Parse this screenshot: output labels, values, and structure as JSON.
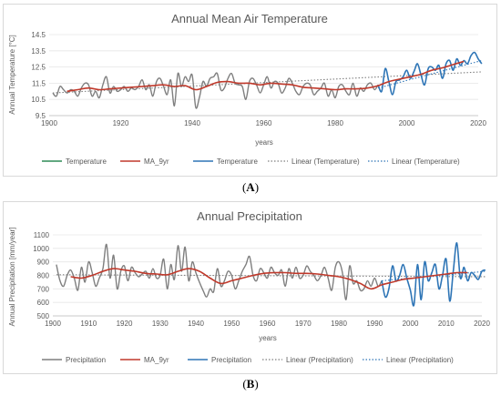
{
  "figure": {
    "caption_a": "A",
    "caption_b": "B"
  },
  "chart_data": [
    {
      "type": "line",
      "title": "Annual Mean Air Temperature",
      "xlabel": "years",
      "ylabel": "Annual Temperature [°C]",
      "xlim": [
        1900,
        2020
      ],
      "ylim": [
        9.5,
        14.5
      ],
      "xticks": [
        "1900",
        "1920",
        "1940",
        "1960",
        "1980",
        "2000",
        "2020"
      ],
      "yticks": [
        "9.5",
        "10.5",
        "11.5",
        "12.5",
        "13.5",
        "14.5"
      ],
      "colors": {
        "temperature_hist": "#2e8b57",
        "ma": "#c0392b",
        "temperature_recent": "#2e75b6",
        "trend_hist": "#7f7f7f",
        "trend_recent": "#2e75b6"
      },
      "legend": [
        "Temperature",
        "MA_9yr",
        "Temperature",
        "Linear (Temperature)",
        "Linear (Temperature)"
      ],
      "legend_position": "bottom",
      "series": [
        {
          "name": "Temperature",
          "x": [
            1901,
            1902,
            1903,
            1904,
            1905,
            1906,
            1907,
            1908,
            1909,
            1910,
            1911,
            1912,
            1913,
            1914,
            1915,
            1916,
            1917,
            1918,
            1919,
            1920,
            1921,
            1922,
            1923,
            1924,
            1925,
            1926,
            1927,
            1928,
            1929,
            1930,
            1931,
            1932,
            1933,
            1934,
            1935,
            1936,
            1937,
            1938,
            1939,
            1940,
            1941,
            1942,
            1943,
            1944,
            1945,
            1946,
            1947,
            1948,
            1949,
            1950,
            1951,
            1952,
            1953,
            1954,
            1955,
            1956,
            1957,
            1958,
            1959,
            1960,
            1961,
            1962,
            1963,
            1964,
            1965,
            1966,
            1967,
            1968,
            1969,
            1970,
            1971,
            1972,
            1973,
            1974,
            1975,
            1976,
            1977,
            1978,
            1979,
            1980,
            1981,
            1982,
            1983,
            1984,
            1985,
            1986,
            1987,
            1988,
            1989,
            1990,
            1991,
            1992
          ],
          "values": [
            10.9,
            10.7,
            11.3,
            11.1,
            10.9,
            11.1,
            11.0,
            10.7,
            11.2,
            11.5,
            11.4,
            10.7,
            11.0,
            10.6,
            11.4,
            11.9,
            10.9,
            11.3,
            11.0,
            11.1,
            11.3,
            11.0,
            11.2,
            11.1,
            11.3,
            11.7,
            11.1,
            11.4,
            10.7,
            11.6,
            11.8,
            11.3,
            10.8,
            11.7,
            10.1,
            12.1,
            11.3,
            11.9,
            11.6,
            12.0,
            10.0,
            10.6,
            11.6,
            11.3,
            11.8,
            11.9,
            12.1,
            11.1,
            11.2,
            11.8,
            12.1,
            11.5,
            11.4,
            11.3,
            10.5,
            11.6,
            11.8,
            11.4,
            10.9,
            11.4,
            11.9,
            11.2,
            11.6,
            11.5,
            10.9,
            11.2,
            11.8,
            11.5,
            11.0,
            10.8,
            11.3,
            11.5,
            11.4,
            10.8,
            11.0,
            11.2,
            11.5,
            10.7,
            11.1,
            10.6,
            11.3,
            11.4,
            11.0,
            10.8,
            11.5,
            10.7,
            11.2,
            11.0,
            11.4,
            11.5,
            11.1,
            11.4
          ]
        },
        {
          "name": "MA_9yr",
          "x": [
            1905,
            1908,
            1911,
            1914,
            1917,
            1920,
            1923,
            1926,
            1929,
            1932,
            1935,
            1938,
            1941,
            1944,
            1947,
            1950,
            1953,
            1956,
            1959,
            1962,
            1965,
            1968,
            1971,
            1974,
            1977,
            1980,
            1983,
            1986,
            1989,
            1992,
            1995,
            1998,
            2001,
            2004,
            2007,
            2010,
            2013,
            2016
          ],
          "values": [
            11.0,
            11.1,
            11.2,
            11.1,
            11.15,
            11.2,
            11.25,
            11.3,
            11.35,
            11.4,
            11.3,
            11.35,
            11.1,
            11.3,
            11.55,
            11.6,
            11.5,
            11.5,
            11.4,
            11.5,
            11.45,
            11.4,
            11.25,
            11.2,
            11.15,
            11.1,
            11.15,
            11.15,
            11.2,
            11.35,
            11.6,
            11.75,
            11.9,
            12.05,
            12.3,
            12.45,
            12.65,
            12.85
          ]
        },
        {
          "name": "Temperature",
          "x": [
            1992,
            1993,
            1994,
            1995,
            1996,
            1997,
            1998,
            1999,
            2000,
            2001,
            2002,
            2003,
            2004,
            2005,
            2006,
            2007,
            2008,
            2009,
            2010,
            2011,
            2012,
            2013,
            2014,
            2015,
            2016,
            2017,
            2018,
            2019,
            2020,
            2021
          ],
          "values": [
            11.4,
            11.0,
            12.4,
            11.6,
            10.8,
            11.6,
            11.7,
            11.9,
            12.3,
            11.8,
            12.2,
            12.7,
            12.0,
            11.4,
            12.4,
            12.5,
            12.3,
            12.6,
            11.8,
            12.7,
            12.9,
            12.3,
            13.0,
            12.6,
            12.9,
            12.7,
            13.2,
            13.4,
            13.0,
            12.7
          ]
        }
      ],
      "trend_lines": [
        {
          "name": "Linear (Temperature)",
          "x": [
            1901,
            2021
          ],
          "values": [
            10.9,
            12.2
          ]
        },
        {
          "name": "Linear (Temperature)",
          "x": [
            1992,
            2021
          ],
          "values": [
            11.2,
            12.9
          ]
        }
      ]
    },
    {
      "type": "line",
      "title": "Annual Precipitation",
      "xlabel": "years",
      "ylabel": "Annual Precipitation [mm/year]",
      "xlim": [
        1900,
        2020
      ],
      "ylim": [
        500,
        1100
      ],
      "xticks": [
        "1900",
        "1910",
        "1920",
        "1930",
        "1940",
        "1950",
        "1960",
        "1970",
        "1980",
        "1990",
        "2000",
        "2010",
        "2020"
      ],
      "yticks": [
        "500",
        "600",
        "700",
        "800",
        "900",
        "1000",
        "1100"
      ],
      "colors": {
        "precip_hist": "#7f7f7f",
        "ma": "#c0392b",
        "precip_recent": "#2e75b6",
        "trend_hist": "#7f7f7f",
        "trend_recent": "#2e75b6"
      },
      "legend": [
        "Precipitation",
        "MA_9yr",
        "Precipitation",
        "Linear (Precipitation)",
        "Linear (Precipitation)"
      ],
      "legend_position": "bottom",
      "series": [
        {
          "name": "Precipitation",
          "x": [
            1901,
            1902,
            1903,
            1904,
            1905,
            1906,
            1907,
            1908,
            1909,
            1910,
            1911,
            1912,
            1913,
            1914,
            1915,
            1916,
            1917,
            1918,
            1919,
            1920,
            1921,
            1922,
            1923,
            1924,
            1925,
            1926,
            1927,
            1928,
            1929,
            1930,
            1931,
            1932,
            1933,
            1934,
            1935,
            1936,
            1937,
            1938,
            1939,
            1940,
            1941,
            1942,
            1943,
            1944,
            1945,
            1946,
            1947,
            1948,
            1949,
            1950,
            1951,
            1952,
            1953,
            1954,
            1955,
            1956,
            1957,
            1958,
            1959,
            1960,
            1961,
            1962,
            1963,
            1964,
            1965,
            1966,
            1967,
            1968,
            1969,
            1970,
            1971,
            1972,
            1973,
            1974,
            1975,
            1976,
            1977,
            1978,
            1979,
            1980,
            1981,
            1982,
            1983,
            1984,
            1985,
            1986,
            1987,
            1988,
            1989,
            1990,
            1991,
            1992
          ],
          "values": [
            880,
            760,
            720,
            800,
            840,
            780,
            690,
            860,
            750,
            900,
            820,
            720,
            780,
            850,
            1030,
            780,
            950,
            700,
            830,
            870,
            760,
            860,
            820,
            790,
            810,
            830,
            780,
            850,
            780,
            800,
            920,
            700,
            880,
            770,
            1020,
            830,
            1010,
            760,
            900,
            820,
            750,
            690,
            640,
            700,
            680,
            850,
            720,
            760,
            830,
            800,
            700,
            760,
            830,
            880,
            940,
            800,
            760,
            850,
            820,
            780,
            860,
            820,
            800,
            840,
            720,
            850,
            780,
            860,
            780,
            800,
            870,
            830,
            800,
            760,
            800,
            860,
            780,
            690,
            860,
            900,
            820,
            620,
            870,
            740,
            760,
            690,
            700,
            760,
            720,
            780,
            720,
            760
          ]
        },
        {
          "name": "MA_9yr",
          "x": [
            1905,
            1908,
            1911,
            1914,
            1917,
            1920,
            1923,
            1926,
            1929,
            1932,
            1935,
            1938,
            1941,
            1944,
            1947,
            1950,
            1953,
            1956,
            1959,
            1962,
            1965,
            1968,
            1971,
            1974,
            1977,
            1980,
            1983,
            1986,
            1989,
            1992,
            1995,
            1998,
            2001,
            2004,
            2007,
            2010,
            2013,
            2016
          ],
          "values": [
            790,
            780,
            800,
            830,
            850,
            840,
            830,
            815,
            810,
            805,
            830,
            850,
            830,
            780,
            740,
            760,
            780,
            800,
            815,
            820,
            820,
            815,
            815,
            810,
            800,
            790,
            770,
            740,
            700,
            730,
            750,
            770,
            780,
            790,
            800,
            810,
            820,
            820
          ]
        },
        {
          "name": "Precipitation",
          "x": [
            1992,
            1993,
            1994,
            1995,
            1996,
            1997,
            1998,
            1999,
            2000,
            2001,
            2002,
            2003,
            2004,
            2005,
            2006,
            2007,
            2008,
            2009,
            2010,
            2011,
            2012,
            2013,
            2014,
            2015,
            2016,
            2017,
            2018,
            2019,
            2020,
            2021
          ],
          "values": [
            760,
            640,
            700,
            870,
            760,
            800,
            880,
            780,
            690,
            580,
            880,
            620,
            900,
            760,
            820,
            880,
            700,
            800,
            920,
            610,
            830,
            1040,
            780,
            860,
            760,
            820,
            800,
            770,
            830,
            840
          ]
        }
      ],
      "trend_lines": [
        {
          "name": "Linear (Precipitation)",
          "x": [
            1901,
            2021
          ],
          "values": [
            805,
            790
          ]
        },
        {
          "name": "Linear (Precipitation)",
          "x": [
            1992,
            2021
          ],
          "values": [
            760,
            830
          ]
        }
      ]
    }
  ]
}
